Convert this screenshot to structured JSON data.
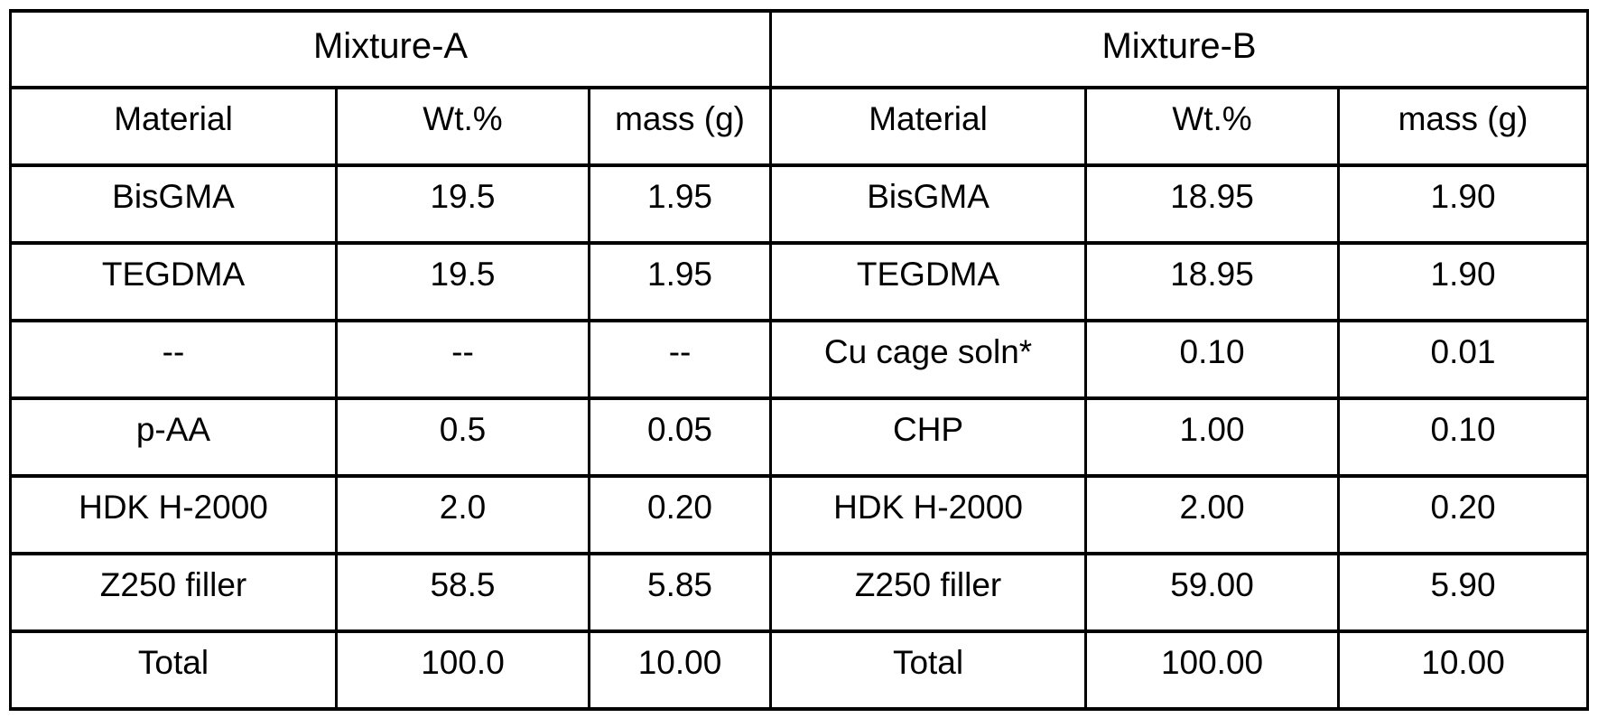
{
  "page": {
    "background_color": "#ffffff",
    "border_color": "#000000",
    "text_color": "#000000"
  },
  "table": {
    "groups": [
      {
        "title": "Mixture-A",
        "headers": [
          "Material",
          "Wt.%",
          "mass (g)"
        ]
      },
      {
        "title": "Mixture-B",
        "headers": [
          "Material",
          "Wt.%",
          "mass (g)"
        ]
      }
    ],
    "rows": [
      {
        "a": [
          "BisGMA",
          "19.5",
          "1.95"
        ],
        "b": [
          "BisGMA",
          "18.95",
          "1.90"
        ]
      },
      {
        "a": [
          "TEGDMA",
          "19.5",
          "1.95"
        ],
        "b": [
          "TEGDMA",
          "18.95",
          "1.90"
        ]
      },
      {
        "a": [
          "--",
          "--",
          "--"
        ],
        "b": [
          "Cu cage soln*",
          "0.10",
          "0.01"
        ]
      },
      {
        "a": [
          "p-AA",
          "0.5",
          "0.05"
        ],
        "b": [
          "CHP",
          "1.00",
          "0.10"
        ]
      },
      {
        "a": [
          "HDK H-2000",
          "2.0",
          "0.20"
        ],
        "b": [
          "HDK H-2000",
          "2.00",
          "0.20"
        ]
      },
      {
        "a": [
          "Z250 filler",
          "58.5",
          "5.85"
        ],
        "b": [
          "Z250 filler",
          "59.00",
          "5.90"
        ]
      },
      {
        "a": [
          "Total",
          "100.0",
          "10.00"
        ],
        "b": [
          "Total",
          "100.00",
          "10.00"
        ]
      }
    ]
  }
}
